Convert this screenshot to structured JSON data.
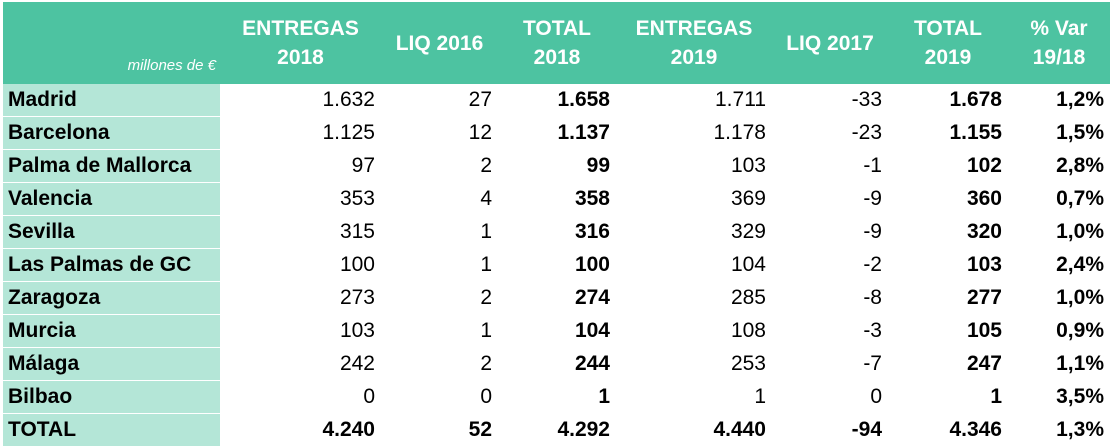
{
  "table": {
    "unit_label": "millones de €",
    "headers": [
      {
        "l1": "ENTREGAS",
        "l2": "2018"
      },
      {
        "l1": "LIQ 2016",
        "l2": ""
      },
      {
        "l1": "TOTAL",
        "l2": "2018"
      },
      {
        "l1": "ENTREGAS",
        "l2": "2019"
      },
      {
        "l1": "LIQ 2017",
        "l2": ""
      },
      {
        "l1": "TOTAL",
        "l2": "2019"
      },
      {
        "l1": "% Var",
        "l2": "19/18"
      }
    ],
    "rows": [
      {
        "city": "Madrid",
        "entregas_2018": "1.632",
        "liq_2016": "27",
        "total_2018": "1.658",
        "entregas_2019": "1.711",
        "liq_2017": "-33",
        "total_2019": "1.678",
        "var": "1,2%"
      },
      {
        "city": "Barcelona",
        "entregas_2018": "1.125",
        "liq_2016": "12",
        "total_2018": "1.137",
        "entregas_2019": "1.178",
        "liq_2017": "-23",
        "total_2019": "1.155",
        "var": "1,5%"
      },
      {
        "city": "Palma de Mallorca",
        "entregas_2018": "97",
        "liq_2016": "2",
        "total_2018": "99",
        "entregas_2019": "103",
        "liq_2017": "-1",
        "total_2019": "102",
        "var": "2,8%"
      },
      {
        "city": "Valencia",
        "entregas_2018": "353",
        "liq_2016": "4",
        "total_2018": "358",
        "entregas_2019": "369",
        "liq_2017": "-9",
        "total_2019": "360",
        "var": "0,7%"
      },
      {
        "city": "Sevilla",
        "entregas_2018": "315",
        "liq_2016": "1",
        "total_2018": "316",
        "entregas_2019": "329",
        "liq_2017": "-9",
        "total_2019": "320",
        "var": "1,0%"
      },
      {
        "city": "Las Palmas de GC",
        "entregas_2018": "100",
        "liq_2016": "1",
        "total_2018": "100",
        "entregas_2019": "104",
        "liq_2017": "-2",
        "total_2019": "103",
        "var": "2,4%"
      },
      {
        "city": "Zaragoza",
        "entregas_2018": "273",
        "liq_2016": "2",
        "total_2018": "274",
        "entregas_2019": "285",
        "liq_2017": "-8",
        "total_2019": "277",
        "var": "1,0%"
      },
      {
        "city": "Murcia",
        "entregas_2018": "103",
        "liq_2016": "1",
        "total_2018": "104",
        "entregas_2019": "108",
        "liq_2017": "-3",
        "total_2019": "105",
        "var": "0,9%"
      },
      {
        "city": "Málaga",
        "entregas_2018": "242",
        "liq_2016": "2",
        "total_2018": "244",
        "entregas_2019": "253",
        "liq_2017": "-7",
        "total_2019": "247",
        "var": "1,1%"
      },
      {
        "city": "Bilbao",
        "entregas_2018": "0",
        "liq_2016": "0",
        "total_2018": "1",
        "entregas_2019": "1",
        "liq_2017": "0",
        "total_2019": "1",
        "var": "3,5%"
      }
    ],
    "total": {
      "city": "TOTAL",
      "entregas_2018": "4.240",
      "liq_2016": "52",
      "total_2018": "4.292",
      "entregas_2019": "4.440",
      "liq_2017": "-94",
      "total_2019": "4.346",
      "var": "1,3%"
    }
  },
  "colors": {
    "header_bg": "#4dc3a1",
    "city_bg": "#b4e6d7",
    "header_text": "#ffffff"
  }
}
